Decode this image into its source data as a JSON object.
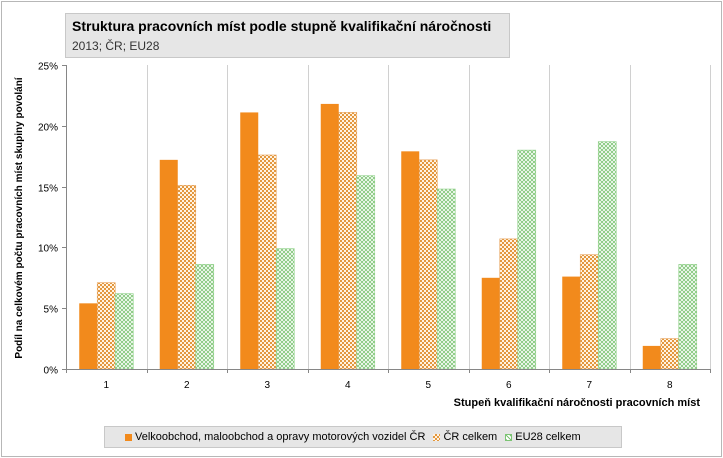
{
  "chart_data": {
    "type": "bar",
    "title": "Struktura pracovních míst podle stupně kvalifikační náročnosti",
    "subtitle": "2013; ČR; EU28",
    "xlabel": "Stupeň kvalifikační náročnosti pracovních míst",
    "ylabel": "Podíl na celkovém počtu pracovních míst skupiny povolání",
    "categories": [
      "1",
      "2",
      "3",
      "4",
      "5",
      "6",
      "7",
      "8"
    ],
    "ylim": [
      0,
      25
    ],
    "yticks": [
      "0%",
      "5%",
      "10%",
      "15%",
      "20%",
      "25%"
    ],
    "ytick_values": [
      0,
      5,
      10,
      15,
      20,
      25
    ],
    "grid": "vertical category separators",
    "legend_position": "bottom",
    "series": [
      {
        "name": "Velkoobchod, maloobchod a opravy motorových vozidel ČR",
        "values": [
          5.4,
          17.2,
          21.1,
          21.8,
          17.9,
          7.5,
          7.6,
          1.9
        ],
        "color": "#f28a1c",
        "pattern": "solid"
      },
      {
        "name": "ČR celkem",
        "values": [
          7.1,
          15.1,
          17.6,
          21.1,
          17.2,
          10.7,
          9.4,
          2.5
        ],
        "color": "#e7a25a",
        "pattern": "checker"
      },
      {
        "name": "EU28 celkem",
        "values": [
          6.2,
          8.6,
          9.9,
          15.9,
          14.8,
          18.0,
          18.7,
          8.6
        ],
        "color": "#7cc474",
        "pattern": "crosshatch"
      }
    ]
  }
}
